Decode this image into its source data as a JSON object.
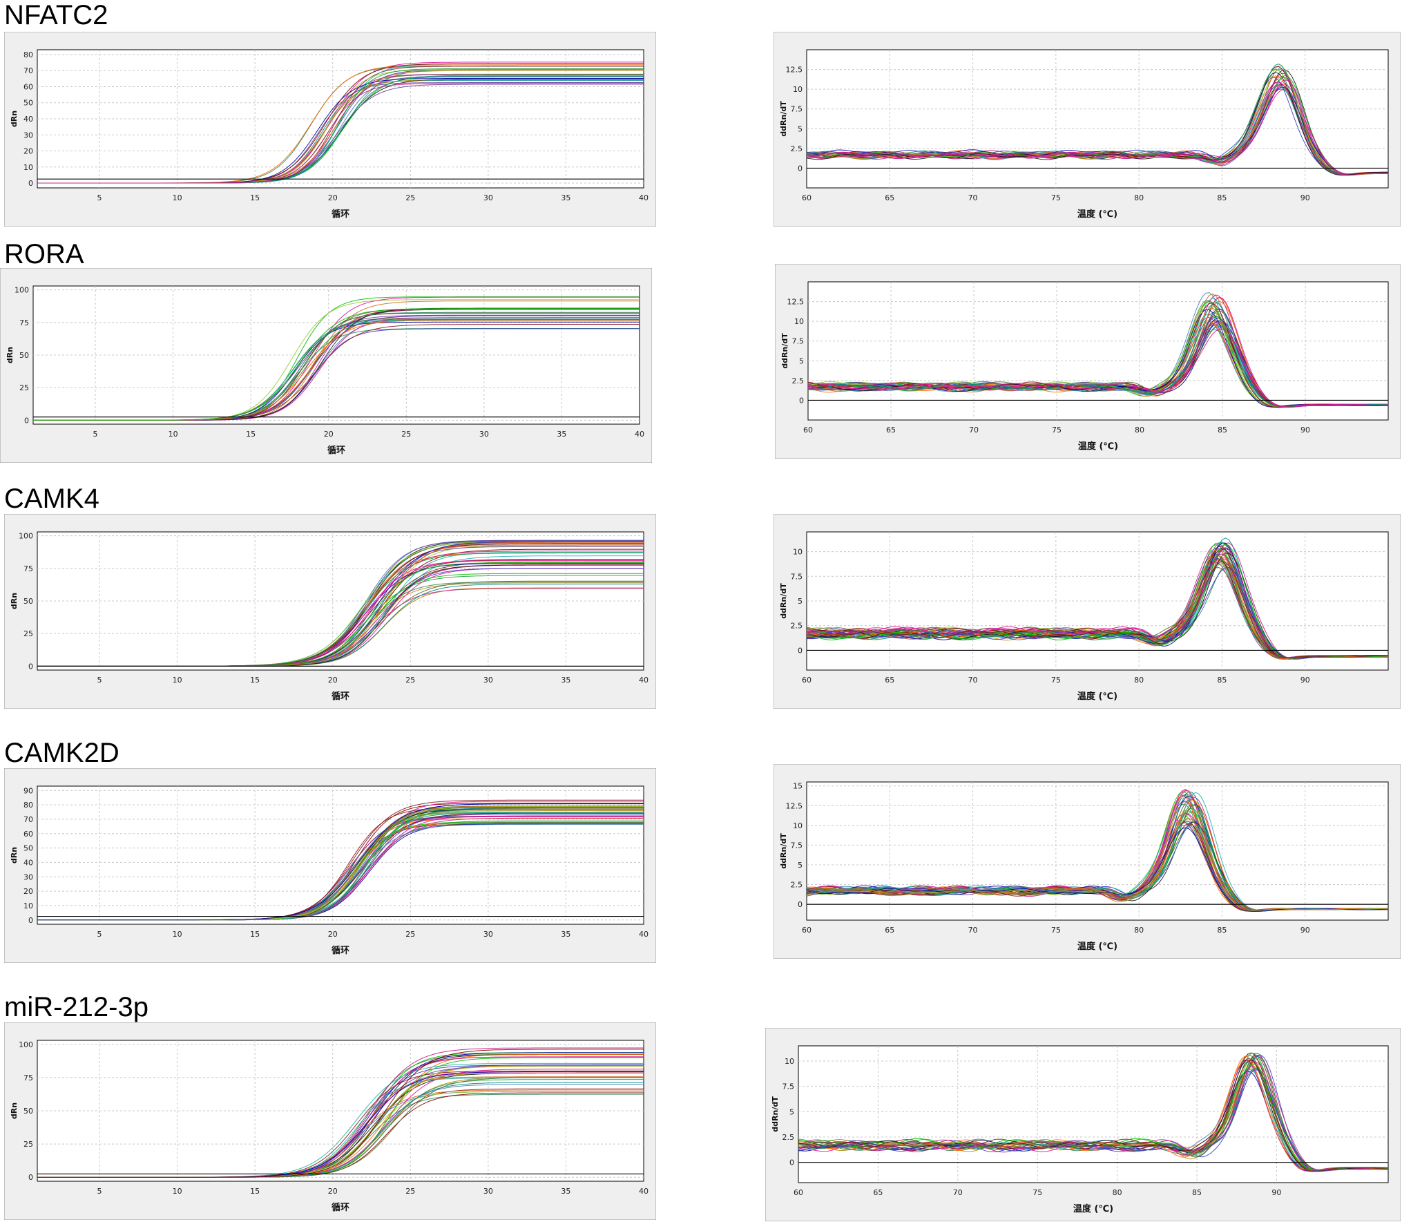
{
  "gene_labels": [
    "NFATC2",
    "RORA",
    "CAMK4",
    "CAMK2D",
    "miR-212-3p"
  ],
  "chart_data": [
    {
      "id": "nfatc2-amp",
      "type": "line",
      "title": "",
      "xlabel": "循环",
      "ylabel": "dRn",
      "xlim": [
        1,
        40
      ],
      "ylim": [
        -3,
        83
      ],
      "xticks": [
        5,
        10,
        15,
        20,
        25,
        30,
        35,
        40
      ],
      "yticks": [
        0,
        10,
        20,
        30,
        40,
        50,
        60,
        70,
        80
      ],
      "grid": true,
      "threshold": 2.5,
      "curve_count": 24,
      "plateau_range": [
        61,
        76
      ],
      "midpoint_range": [
        18.5,
        21
      ],
      "slope": 0.9
    },
    {
      "id": "nfatc2-melt",
      "type": "line",
      "title": "",
      "xlabel": "温度 (℃)",
      "ylabel": "ddRn/dT",
      "xlim": [
        60,
        95
      ],
      "ylim": [
        -2.5,
        15
      ],
      "xticks": [
        60,
        65,
        70,
        75,
        80,
        85,
        90
      ],
      "yticks": [
        0,
        2.5,
        5,
        7.5,
        10,
        12.5
      ],
      "grid": true,
      "baseline": 0,
      "curve_count": 24,
      "peak_temp": 88.5,
      "peak_height_range": [
        10,
        13.5
      ]
    },
    {
      "id": "rora-amp",
      "type": "line",
      "title": "",
      "xlabel": "循环",
      "ylabel": "dRn",
      "xlim": [
        1,
        40
      ],
      "ylim": [
        -3,
        103
      ],
      "xticks": [
        5,
        10,
        15,
        20,
        25,
        30,
        35,
        40
      ],
      "yticks": [
        0,
        25,
        50,
        75,
        100
      ],
      "grid": true,
      "threshold": 2.5,
      "curve_count": 26,
      "plateau_range": [
        70,
        95
      ],
      "midpoint_range": [
        17.5,
        19.5
      ],
      "slope": 0.85
    },
    {
      "id": "rora-melt",
      "type": "line",
      "title": "",
      "xlabel": "温度 (℃)",
      "ylabel": "ddRn/dT",
      "xlim": [
        60,
        95
      ],
      "ylim": [
        -2.5,
        15
      ],
      "xticks": [
        60,
        65,
        70,
        75,
        80,
        85,
        90
      ],
      "yticks": [
        0,
        2.5,
        5,
        7.5,
        10,
        12.5
      ],
      "grid": true,
      "baseline": 0,
      "curve_count": 36,
      "peak_temp": 84.5,
      "peak_height_range": [
        9,
        13.8
      ]
    },
    {
      "id": "camk4-amp",
      "type": "line",
      "title": "",
      "xlabel": "循环",
      "ylabel": "dRn",
      "xlim": [
        1,
        40
      ],
      "ylim": [
        -3,
        103
      ],
      "xticks": [
        5,
        10,
        15,
        20,
        25,
        30,
        35,
        40
      ],
      "yticks": [
        0,
        25,
        50,
        75,
        100
      ],
      "grid": true,
      "threshold": 0,
      "curve_count": 40,
      "plateau_range": [
        59,
        97
      ],
      "midpoint_range": [
        22,
        23.5
      ],
      "slope": 0.75
    },
    {
      "id": "camk4-melt",
      "type": "line",
      "title": "",
      "xlabel": "温度 (℃)",
      "ylabel": "ddRn/dT",
      "xlim": [
        60,
        95
      ],
      "ylim": [
        -2,
        12
      ],
      "xticks": [
        60,
        65,
        70,
        75,
        80,
        85,
        90
      ],
      "yticks": [
        0,
        2.5,
        5,
        7.5,
        10
      ],
      "grid": true,
      "baseline": 0,
      "curve_count": 38,
      "peak_temp": 85,
      "peak_height_range": [
        8.6,
        11.3
      ]
    },
    {
      "id": "camk2d-amp",
      "type": "line",
      "title": "",
      "xlabel": "循环",
      "ylabel": "dRn",
      "xlim": [
        1,
        40
      ],
      "ylim": [
        -3,
        93
      ],
      "xticks": [
        5,
        10,
        15,
        20,
        25,
        30,
        35,
        40
      ],
      "yticks": [
        0,
        10,
        20,
        30,
        40,
        50,
        60,
        70,
        80,
        90
      ],
      "grid": true,
      "threshold": 2.5,
      "curve_count": 40,
      "plateau_range": [
        66,
        84
      ],
      "midpoint_range": [
        21,
        22.5
      ],
      "slope": 0.8
    },
    {
      "id": "camk2d-melt",
      "type": "line",
      "title": "",
      "xlabel": "温度 (℃)",
      "ylabel": "ddRn/dT",
      "xlim": [
        60,
        95
      ],
      "ylim": [
        -2,
        15.5
      ],
      "xticks": [
        60,
        65,
        70,
        75,
        80,
        85,
        90
      ],
      "yticks": [
        0,
        2.5,
        5,
        7.5,
        10,
        12.5,
        15
      ],
      "grid": true,
      "baseline": 0,
      "curve_count": 38,
      "peak_temp": 83,
      "peak_height_range": [
        10,
        14.5
      ]
    },
    {
      "id": "mir212-amp",
      "type": "line",
      "title": "",
      "xlabel": "循环",
      "ylabel": "dRn",
      "xlim": [
        1,
        40
      ],
      "ylim": [
        -3,
        103
      ],
      "xticks": [
        5,
        10,
        15,
        20,
        25,
        30,
        35,
        40
      ],
      "yticks": [
        0,
        25,
        50,
        75,
        100
      ],
      "grid": true,
      "threshold": 2.5,
      "curve_count": 36,
      "plateau_range": [
        62,
        100
      ],
      "midpoint_range": [
        21.5,
        24
      ],
      "slope": 0.75
    },
    {
      "id": "mir212-melt",
      "type": "line",
      "title": "",
      "xlabel": "温度 (℃)",
      "ylabel": "ddRn/dT",
      "xlim": [
        60,
        97
      ],
      "ylim": [
        -2,
        11.5
      ],
      "xticks": [
        60,
        65,
        70,
        75,
        80,
        85,
        90
      ],
      "yticks": [
        0,
        2.5,
        5,
        7.5,
        10
      ],
      "grid": true,
      "baseline": 0,
      "curve_count": 26,
      "peak_temp": 88.5,
      "peak_height_range": [
        9,
        10.7
      ]
    }
  ],
  "tick_labels": {
    "cycles": [
      "5",
      "10",
      "15",
      "20",
      "25",
      "30",
      "35",
      "40"
    ],
    "temperatures": [
      "60",
      "65",
      "70",
      "75",
      "80",
      "85",
      "90"
    ]
  },
  "series_palette": [
    "#1f9e3a",
    "#cc1f8a",
    "#1a1a1a",
    "#3c3cc8",
    "#8b1a1a",
    "#20b2aa",
    "#b8860b",
    "#6a3d9a",
    "#e0119a",
    "#2e8b57",
    "#ff6600",
    "#4682b4",
    "#9acd32",
    "#800000",
    "#008b8b",
    "#c71585",
    "#556b2f",
    "#00c000",
    "#d2691e",
    "#0000aa"
  ],
  "frame_colors": {
    "panel": "#efefef",
    "plot": "#ffffff",
    "grid": "#c8c8c8",
    "axis": "#000000"
  }
}
